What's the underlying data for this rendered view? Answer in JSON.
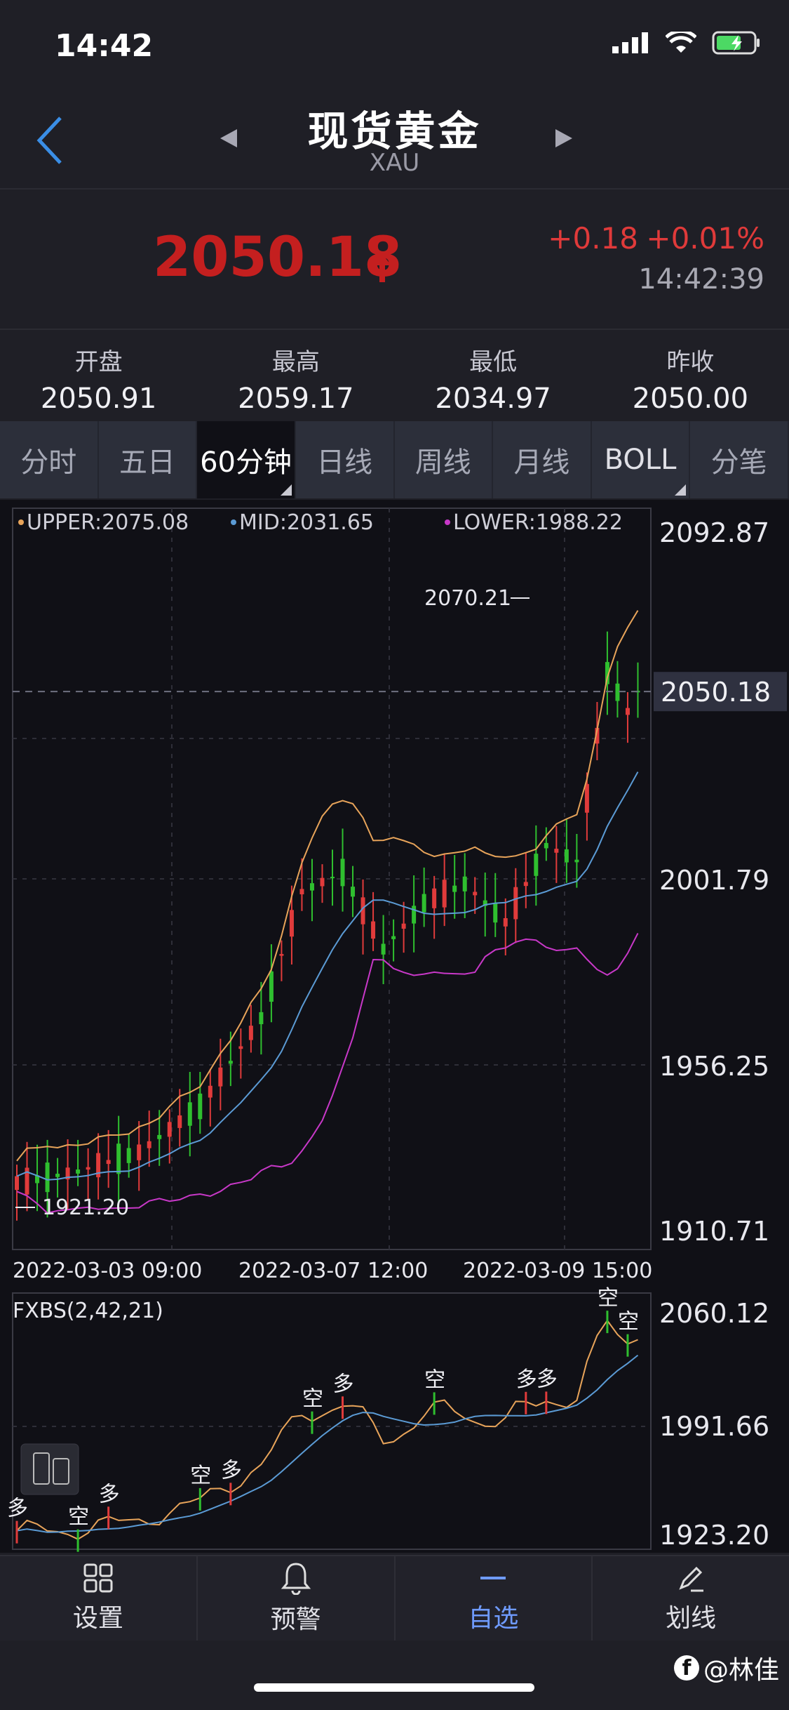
{
  "status": {
    "time": "14:42"
  },
  "nav": {
    "title": "现货黄金",
    "subtitle": "XAU"
  },
  "quote": {
    "price": "2050.18",
    "change": "+0.18",
    "change_pct": "+0.01%",
    "time": "14:42:39",
    "up_color": "#c41f1f"
  },
  "stats": [
    {
      "label": "开盘",
      "value": "2050.91"
    },
    {
      "label": "最高",
      "value": "2059.17"
    },
    {
      "label": "最低",
      "value": "2034.97"
    },
    {
      "label": "昨收",
      "value": "2050.00"
    }
  ],
  "tabs": [
    "分时",
    "五日",
    "60分钟",
    "日线",
    "周线",
    "月线",
    "BOLL",
    "分笔"
  ],
  "active_tab": "60分钟",
  "chart_data": {
    "type": "candlestick",
    "indicator": "BOLL",
    "legend": {
      "upper": "UPPER:2075.08",
      "mid": "MID:2031.65",
      "lower": "LOWER:1988.22"
    },
    "colors": {
      "up": "#e03b3b",
      "down": "#2fbf2f",
      "upper": "#e8a45a",
      "mid": "#5b9bd5",
      "lower": "#c838c8"
    },
    "y_ticks": [
      "2092.87",
      "2001.79",
      "1956.25",
      "1910.71"
    ],
    "ylim": [
      1910.71,
      2092.87
    ],
    "current_price": "2050.18",
    "annot_high": "2070.21",
    "annot_low": "1921.20",
    "x_labels": [
      "2022-03-03 09:00",
      "2022-03-07 12:00",
      "2022-03-09 15:00"
    ],
    "sub_indicator": "FXBS(2,42,21)",
    "sub_y_ticks": [
      "2060.12",
      "1991.66",
      "1923.20"
    ],
    "sub_signals": [
      "多",
      "空",
      "多",
      "空",
      "多",
      "空",
      "多",
      "空",
      "多",
      "多",
      "空",
      "空"
    ]
  },
  "bottom_tabs": [
    {
      "label": "设置",
      "icon": "grid-icon"
    },
    {
      "label": "预警",
      "icon": "bell-icon"
    },
    {
      "label": "自选",
      "icon": "minus-icon"
    },
    {
      "label": "划线",
      "icon": "pen-icon"
    }
  ],
  "watermark": "@林佳"
}
